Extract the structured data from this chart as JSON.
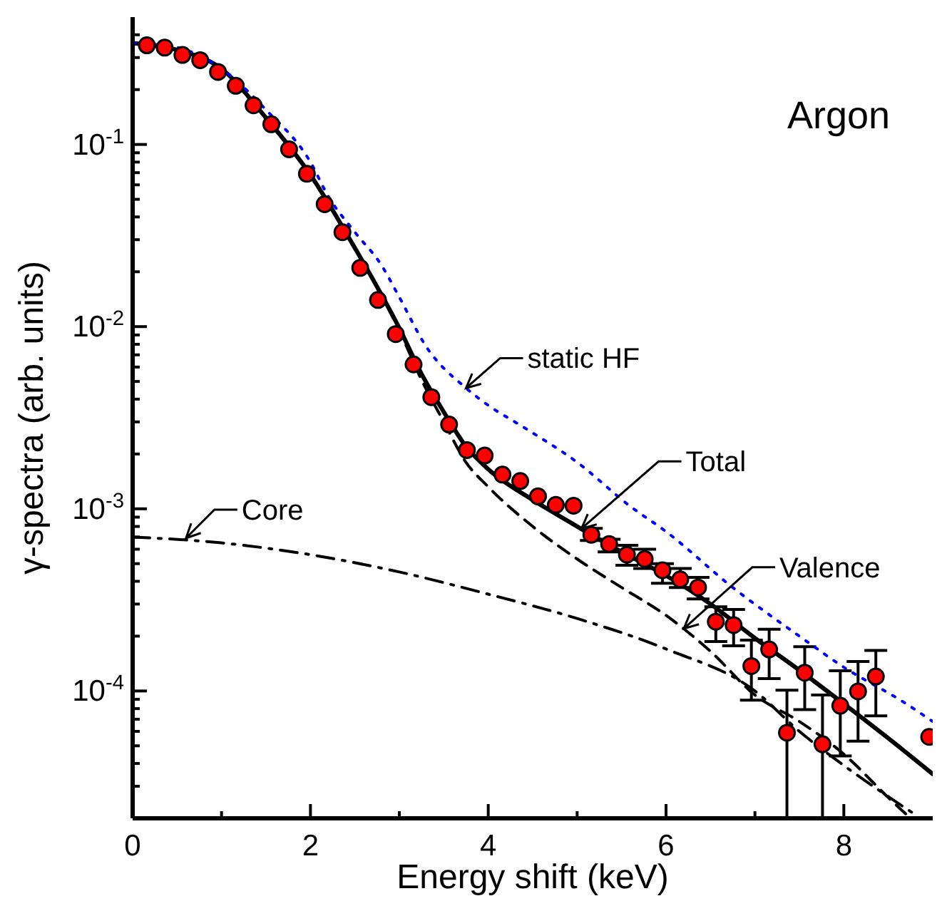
{
  "chart_data": {
    "type": "line",
    "xlabel": "Energy shift (keV)",
    "ylabel": "γ-spectra (arb. units)",
    "annotations": [
      "Argon",
      {
        "text": "Total",
        "x": 5.05,
        "y": 0.00078
      },
      {
        "text": "Valence",
        "x": 6.2,
        "y": 0.00022
      },
      {
        "text": "Core",
        "x": 0.6,
        "y": 0.00069
      },
      {
        "text": "static HF",
        "x": 3.75,
        "y": 0.0046
      }
    ],
    "log": "y",
    "xlim": [
      0,
      9
    ],
    "xticks": [
      0,
      {
        "value": 1,
        "label": null
      },
      2,
      {
        "value": 3,
        "label": null
      },
      4,
      {
        "value": 5,
        "label": null
      },
      6,
      {
        "value": 7,
        "label": null
      },
      8
    ],
    "ylim": [
      2e-05,
      0.5
    ],
    "yticks": [
      {
        "value": 2e-05,
        "label": null
      },
      {
        "value": 3e-05,
        "label": null
      },
      {
        "value": 4e-05,
        "label": null
      },
      {
        "value": 5e-05,
        "label": null
      },
      {
        "value": 6e-05,
        "label": null
      },
      {
        "value": 7e-05,
        "label": null
      },
      {
        "value": 8e-05,
        "label": null
      },
      {
        "value": 9e-05,
        "label": null
      },
      {
        "value": 0.0001,
        "label": "10$^{-4}$"
      },
      {
        "value": 0.0002,
        "label": null
      },
      {
        "value": 0.0003,
        "label": null
      },
      {
        "value": 0.0004,
        "label": null
      },
      {
        "value": 0.0005,
        "label": null
      },
      {
        "value": 0.0006,
        "label": null
      },
      {
        "value": 0.0007,
        "label": null
      },
      {
        "value": 0.0008,
        "label": null
      },
      {
        "value": 0.0009,
        "label": null
      },
      {
        "value": 0.001,
        "label": "10$^{-3}$"
      },
      {
        "value": 0.002,
        "label": null
      },
      {
        "value": 0.003,
        "label": null
      },
      {
        "value": 0.004,
        "label": null
      },
      {
        "value": 0.005,
        "label": null
      },
      {
        "value": 0.006,
        "label": null
      },
      {
        "value": 0.007,
        "label": null
      },
      {
        "value": 0.008,
        "label": null
      },
      {
        "value": 0.009,
        "label": null
      },
      {
        "value": 0.01,
        "label": "10$^{-2}$"
      },
      {
        "value": 0.02,
        "label": null
      },
      {
        "value": 0.03,
        "label": null
      },
      {
        "value": 0.04,
        "label": null
      },
      {
        "value": 0.05,
        "label": null
      },
      {
        "value": 0.06,
        "label": null
      },
      {
        "value": 0.07,
        "label": null
      },
      {
        "value": 0.08,
        "label": null
      },
      {
        "value": 0.09,
        "label": null
      },
      {
        "value": 0.1,
        "label": "10$^{-1}$"
      },
      {
        "value": 0.2,
        "label": null
      },
      {
        "value": 0.3,
        "label": null
      },
      {
        "value": 0.4,
        "label": null
      }
    ],
    "series": [
      {
        "type": "scatter",
        "color": "#ff0000",
        "marker": "circle",
        "x": [
          0.16,
          0.36,
          0.56,
          0.76,
          0.96,
          1.16,
          1.36,
          1.56,
          1.76,
          1.96,
          2.16,
          2.36,
          2.56,
          2.76,
          2.96,
          3.16,
          3.36,
          3.56,
          3.76,
          3.96,
          4.16,
          4.36,
          4.56,
          4.76,
          4.96,
          5.16,
          5.36,
          5.56,
          5.76,
          5.96,
          6.16,
          6.36,
          6.56,
          6.76,
          6.96,
          7.16,
          7.36,
          7.56,
          7.76,
          7.96,
          8.16,
          8.36,
          8.96
        ],
        "values": [
          0.35,
          0.34,
          0.31,
          0.29,
          0.25,
          0.21,
          0.164,
          0.129,
          0.094,
          0.069,
          0.047,
          0.033,
          0.021,
          0.014,
          0.0091,
          0.0062,
          0.0041,
          0.0029,
          0.0021,
          0.00196,
          0.00154,
          0.00142,
          0.00117,
          0.00105,
          0.00104,
          0.00072,
          0.00064,
          0.00056,
          0.00053,
          0.00046,
          0.00041,
          0.00037,
          0.00024,
          0.00023,
          0.000137,
          0.000169,
          5.9e-05,
          0.000126,
          5.1e-05,
          8.3e-05,
          9.95e-05,
          0.00012,
          5.6e-05
        ],
        "errors": [
          null,
          null,
          null,
          null,
          null,
          null,
          null,
          null,
          null,
          null,
          null,
          null,
          null,
          null,
          null,
          null,
          null,
          null,
          null,
          null,
          null,
          null,
          null,
          null,
          null,
          [
            0.00067,
            0.00078
          ],
          [
            0.00058,
            0.00068
          ],
          [
            0.00049,
            0.00063
          ],
          [
            0.00047,
            0.0006
          ],
          [
            0.00039,
            0.0005
          ],
          [
            0.00037,
            0.00047
          ],
          [
            0.00032,
            0.00042
          ],
          [
            0.000187,
            0.00029
          ],
          [
            0.000177,
            0.00028
          ],
          [
            8.9e-05,
            0.00019
          ],
          [
            0.000117,
            0.000218
          ],
          [
            2e-05,
            0.000101
          ],
          [
            7.9e-05,
            0.000175
          ],
          [
            2e-05,
            9.5e-05
          ],
          [
            4.4e-05,
            0.000129
          ],
          [
            5.3e-05,
            0.000145
          ],
          [
            7.3e-05,
            0.000167
          ],
          null
        ]
      },
      {
        "type": "line",
        "color": "#000000",
        "line_style": "solid",
        "marker": "none",
        "x": [
          0,
          0.5,
          1,
          1.5,
          2,
          2.5,
          3,
          3.25,
          3.5,
          3.75,
          4,
          4.5,
          5,
          5.5,
          6,
          6.5,
          7,
          7.5,
          8,
          8.5,
          9
        ],
        "values": [
          0.36,
          0.33,
          0.26,
          0.14,
          0.068,
          0.027,
          0.0098,
          0.0055,
          0.0034,
          0.0022,
          0.00165,
          0.00112,
          0.0008,
          0.00058,
          0.00043,
          0.0003,
          0.000195,
          0.00013,
          8.5e-05,
          5.5e-05,
          3.5e-05
        ]
      },
      {
        "type": "line",
        "color": "#000000",
        "line_style": "dashed",
        "marker": "none",
        "x": [
          0,
          0.5,
          1,
          1.5,
          2,
          2.5,
          3,
          3.25,
          3.5,
          3.75,
          4,
          4.5,
          5,
          5.5,
          6,
          6.5,
          7,
          7.5,
          8,
          8.5,
          8.75
        ],
        "values": [
          0.36,
          0.33,
          0.26,
          0.14,
          0.068,
          0.027,
          0.0095,
          0.0051,
          0.003,
          0.0018,
          0.00132,
          0.0008,
          0.00053,
          0.00037,
          0.00026,
          0.000165,
          9.5e-05,
          6.8e-05,
          4.5e-05,
          2.6e-05,
          2e-05
        ]
      },
      {
        "type": "line",
        "color": "#000000",
        "line_style": "dashdot",
        "marker": "none",
        "x": [
          0,
          1,
          2,
          3,
          4,
          5,
          6,
          7,
          7.5,
          8,
          8.8
        ],
        "values": [
          0.0007,
          0.00065,
          0.00056,
          0.00045,
          0.00034,
          0.00025,
          0.00017,
          0.0001,
          6e-05,
          3.9e-05,
          2.1e-05
        ]
      },
      {
        "type": "line",
        "color": "#0000ff",
        "line_style": "dotted",
        "marker": "none",
        "x": [
          0,
          0.5,
          1,
          1.5,
          2,
          2.2,
          2.5,
          2.8,
          3,
          3.3,
          3.75,
          4,
          4.4,
          5,
          5.6,
          6,
          6.75,
          7.5,
          8,
          8.67,
          9
        ],
        "values": [
          0.36,
          0.34,
          0.26,
          0.155,
          0.08,
          0.052,
          0.033,
          0.0217,
          0.0145,
          0.0078,
          0.0046,
          0.0037,
          0.0028,
          0.0018,
          0.00103,
          0.00075,
          0.00037,
          0.0002,
          0.000135,
          8.7e-05,
          6.8e-05
        ]
      }
    ]
  }
}
